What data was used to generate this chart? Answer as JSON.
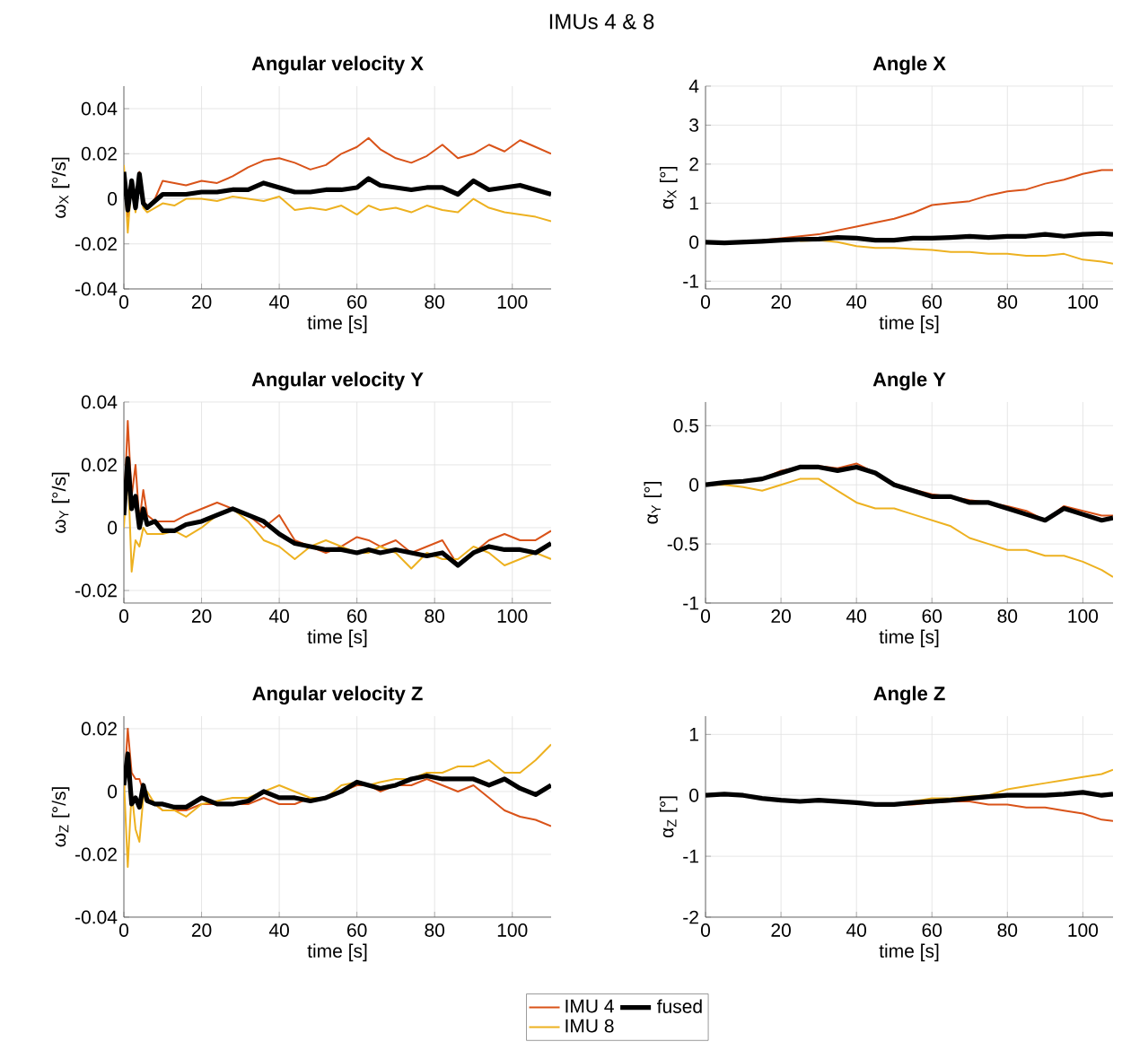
{
  "chart_data": [
    {
      "type": "line",
      "title": "Angular velocity X",
      "annotations": [
        "IMUs 4 & 8"
      ],
      "xlabel": "time [s]",
      "ylabel": "ω$_{X}$ [°/s]",
      "xlim": [
        0,
        110
      ],
      "ylim": [
        -0.04,
        0.05
      ],
      "xticks": [
        0,
        20,
        40,
        60,
        80,
        100
      ],
      "yticks": [
        -0.04,
        -0.02,
        0,
        0.02,
        0.04
      ],
      "grid": true,
      "x": [
        0,
        1,
        2,
        3,
        4,
        5,
        6,
        8,
        10,
        13,
        16,
        20,
        24,
        28,
        32,
        36,
        40,
        44,
        48,
        52,
        56,
        60,
        63,
        66,
        70,
        74,
        78,
        82,
        86,
        90,
        94,
        98,
        102,
        106,
        110
      ],
      "series": [
        {
          "color": "#d95319",
          "values": [
            0.01,
            -0.008,
            0.005,
            -0.005,
            0.012,
            0,
            -0.004,
            0,
            0.008,
            0.007,
            0.006,
            0.008,
            0.007,
            0.01,
            0.014,
            0.017,
            0.018,
            0.016,
            0.013,
            0.015,
            0.02,
            0.023,
            0.027,
            0.022,
            0.018,
            0.016,
            0.019,
            0.024,
            0.018,
            0.02,
            0.024,
            0.021,
            0.026,
            0.023,
            0.02
          ]
        },
        {
          "color": "#edb120",
          "values": [
            0.015,
            -0.015,
            0.008,
            -0.006,
            0.01,
            -0.004,
            -0.006,
            -0.004,
            -0.002,
            -0.003,
            0,
            0,
            -0.001,
            0.001,
            0,
            -0.001,
            0.001,
            -0.005,
            -0.004,
            -0.005,
            -0.003,
            -0.007,
            -0.003,
            -0.005,
            -0.004,
            -0.006,
            -0.003,
            -0.005,
            -0.006,
            0,
            -0.004,
            -0.006,
            -0.007,
            -0.008,
            -0.01
          ]
        },
        {
          "color": "#000000",
          "values": [
            0.012,
            -0.005,
            0.008,
            -0.004,
            0.011,
            -0.002,
            -0.004,
            -0.001,
            0.002,
            0.002,
            0.002,
            0.003,
            0.003,
            0.004,
            0.004,
            0.007,
            0.005,
            0.003,
            0.003,
            0.004,
            0.004,
            0.005,
            0.009,
            0.006,
            0.005,
            0.004,
            0.005,
            0.005,
            0.002,
            0.008,
            0.004,
            0.005,
            0.006,
            0.004,
            0.002
          ]
        }
      ]
    },
    {
      "type": "line",
      "title": "Angle X",
      "xlabel": "time [s]",
      "ylabel": "α$_{X}$ [°]",
      "xlim": [
        0,
        108
      ],
      "ylim": [
        -1.2,
        4
      ],
      "xticks": [
        0,
        20,
        40,
        60,
        80,
        100
      ],
      "yticks": [
        -1,
        0,
        1,
        2,
        3,
        4
      ],
      "grid": true,
      "x": [
        0,
        5,
        10,
        15,
        20,
        25,
        30,
        35,
        40,
        45,
        50,
        55,
        60,
        65,
        70,
        75,
        80,
        85,
        90,
        95,
        100,
        105,
        108
      ],
      "series": [
        {
          "color": "#d95319",
          "values": [
            null,
            null,
            null,
            0.05,
            0.1,
            0.15,
            0.2,
            0.3,
            0.4,
            0.5,
            0.6,
            0.75,
            0.95,
            1.0,
            1.05,
            1.2,
            1.3,
            1.35,
            1.5,
            1.6,
            1.75,
            1.85,
            1.85
          ]
        },
        {
          "color": "#edb120",
          "values": [
            null,
            null,
            null,
            null,
            null,
            0.03,
            0.05,
            0.0,
            -0.1,
            -0.15,
            -0.15,
            -0.18,
            -0.2,
            -0.25,
            -0.25,
            -0.3,
            -0.3,
            -0.35,
            -0.35,
            -0.3,
            -0.45,
            -0.5,
            -0.55
          ]
        },
        {
          "color": "#000000",
          "values": [
            0,
            -0.02,
            0,
            0.02,
            0.05,
            0.07,
            0.08,
            0.12,
            0.1,
            0.05,
            0.05,
            0.1,
            0.1,
            0.12,
            0.15,
            0.12,
            0.15,
            0.15,
            0.2,
            0.15,
            0.2,
            0.22,
            0.2
          ]
        }
      ]
    },
    {
      "type": "line",
      "title": "Angular velocity Y",
      "xlabel": "time [s]",
      "ylabel": "ω$_{Y}$ [°/s]",
      "xlim": [
        0,
        110
      ],
      "ylim": [
        -0.024,
        0.04
      ],
      "xticks": [
        0,
        20,
        40,
        60,
        80,
        100
      ],
      "yticks": [
        -0.02,
        0,
        0.02,
        0.04
      ],
      "grid": true,
      "x": [
        0,
        1,
        2,
        3,
        4,
        5,
        6,
        8,
        10,
        13,
        16,
        20,
        24,
        28,
        32,
        36,
        40,
        44,
        48,
        52,
        56,
        60,
        63,
        66,
        70,
        74,
        78,
        82,
        86,
        90,
        94,
        98,
        102,
        106,
        110
      ],
      "series": [
        {
          "color": "#d95319",
          "values": [
            0.005,
            0.034,
            0.01,
            0.02,
            0.002,
            0.012,
            0.004,
            0.002,
            0.002,
            0.002,
            0.004,
            0.006,
            0.008,
            0.006,
            0.004,
            0,
            0.004,
            -0.004,
            -0.006,
            -0.008,
            -0.006,
            -0.003,
            -0.004,
            -0.006,
            -0.004,
            -0.008,
            -0.006,
            -0.004,
            -0.012,
            -0.008,
            -0.004,
            -0.002,
            -0.004,
            -0.004,
            -0.001
          ]
        },
        {
          "color": "#edb120",
          "values": [
            0,
            0.02,
            -0.014,
            -0.004,
            -0.006,
            0,
            -0.002,
            -0.002,
            -0.002,
            -0.001,
            -0.003,
            0,
            0.004,
            0.006,
            0.002,
            -0.004,
            -0.006,
            -0.01,
            -0.006,
            -0.004,
            -0.006,
            -0.008,
            -0.008,
            -0.006,
            -0.008,
            -0.013,
            -0.008,
            -0.01,
            -0.01,
            -0.006,
            -0.008,
            -0.012,
            -0.01,
            -0.008,
            -0.01
          ]
        },
        {
          "color": "#000000",
          "values": [
            0.004,
            0.022,
            0.006,
            0.01,
            0,
            0.006,
            0.001,
            0.002,
            -0.001,
            -0.001,
            0.001,
            0.002,
            0.004,
            0.006,
            0.004,
            0.002,
            -0.002,
            -0.005,
            -0.006,
            -0.007,
            -0.007,
            -0.008,
            -0.007,
            -0.008,
            -0.007,
            -0.008,
            -0.009,
            -0.008,
            -0.012,
            -0.008,
            -0.006,
            -0.007,
            -0.007,
            -0.008,
            -0.005
          ]
        }
      ]
    },
    {
      "type": "line",
      "title": "Angle Y",
      "xlabel": "time [s]",
      "ylabel": "α$_{Y}$ [°]",
      "xlim": [
        0,
        108
      ],
      "ylim": [
        -1,
        0.7
      ],
      "xticks": [
        0,
        20,
        40,
        60,
        80,
        100
      ],
      "yticks": [
        -1,
        -0.5,
        0,
        0.5
      ],
      "grid": true,
      "x": [
        0,
        5,
        10,
        15,
        20,
        25,
        30,
        35,
        40,
        45,
        50,
        55,
        60,
        65,
        70,
        75,
        80,
        85,
        90,
        95,
        100,
        105,
        108
      ],
      "series": [
        {
          "color": "#d95319",
          "values": [
            null,
            null,
            null,
            0.05,
            0.12,
            0.15,
            0.16,
            0.14,
            0.18,
            0.1,
            0.01,
            -0.04,
            -0.08,
            -0.1,
            -0.13,
            -0.15,
            -0.18,
            -0.22,
            -0.3,
            -0.18,
            -0.22,
            -0.26,
            -0.26
          ]
        },
        {
          "color": "#edb120",
          "values": [
            0,
            0,
            -0.02,
            -0.05,
            0,
            0.05,
            0.05,
            -0.05,
            -0.15,
            -0.2,
            -0.2,
            -0.25,
            -0.3,
            -0.35,
            -0.45,
            -0.5,
            -0.55,
            -0.55,
            -0.6,
            -0.6,
            -0.65,
            -0.72,
            -0.78
          ]
        },
        {
          "color": "#000000",
          "values": [
            0,
            0.02,
            0.03,
            0.05,
            0.1,
            0.15,
            0.15,
            0.12,
            0.15,
            0.1,
            0,
            -0.05,
            -0.1,
            -0.1,
            -0.15,
            -0.15,
            -0.2,
            -0.25,
            -0.3,
            -0.2,
            -0.25,
            -0.3,
            -0.28
          ]
        }
      ]
    },
    {
      "type": "line",
      "title": "Angular velocity Z",
      "xlabel": "time [s]",
      "ylabel": "ω$_{Z}$ [°/s]",
      "xlim": [
        0,
        110
      ],
      "ylim": [
        -0.04,
        0.024
      ],
      "xticks": [
        0,
        20,
        40,
        60,
        80,
        100
      ],
      "yticks": [
        -0.04,
        -0.02,
        0,
        0.02
      ],
      "grid": true,
      "legend": "bottom",
      "x": [
        0,
        1,
        2,
        3,
        4,
        5,
        6,
        8,
        10,
        13,
        16,
        20,
        24,
        28,
        32,
        36,
        40,
        44,
        48,
        52,
        56,
        60,
        63,
        66,
        70,
        74,
        78,
        82,
        86,
        90,
        94,
        98,
        102,
        106,
        110
      ],
      "series": [
        {
          "name": "IMU 4",
          "color": "#d95319",
          "values": [
            0,
            0.02,
            0.006,
            0.004,
            0.004,
            0,
            -0.002,
            -0.004,
            -0.006,
            -0.006,
            -0.006,
            -0.004,
            -0.004,
            -0.004,
            -0.004,
            -0.002,
            -0.004,
            -0.004,
            -0.002,
            -0.002,
            0,
            0.002,
            0.002,
            0,
            0.002,
            0.002,
            0.004,
            0.002,
            0,
            0.002,
            -0.002,
            -0.006,
            -0.008,
            -0.009,
            -0.011
          ]
        },
        {
          "name": "IMU 8",
          "color": "#edb120",
          "values": [
            0.004,
            -0.024,
            0,
            -0.012,
            -0.016,
            -0.002,
            0,
            -0.004,
            -0.006,
            -0.006,
            -0.008,
            -0.004,
            -0.003,
            -0.002,
            -0.002,
            0,
            0.002,
            0,
            -0.002,
            -0.002,
            0.002,
            0.003,
            0.002,
            0.003,
            0.004,
            0.004,
            0.006,
            0.006,
            0.008,
            0.008,
            0.01,
            0.006,
            0.006,
            0.01,
            0.015
          ]
        },
        {
          "name": "fused",
          "color": "#000000",
          "values": [
            0.002,
            0.012,
            -0.004,
            -0.002,
            -0.005,
            0.002,
            -0.003,
            -0.004,
            -0.004,
            -0.005,
            -0.005,
            -0.002,
            -0.004,
            -0.004,
            -0.003,
            0,
            -0.002,
            -0.002,
            -0.003,
            -0.002,
            0,
            0.003,
            0.002,
            0.001,
            0.002,
            0.004,
            0.005,
            0.004,
            0.004,
            0.004,
            0.002,
            0.004,
            0.001,
            -0.001,
            0.002
          ]
        }
      ]
    },
    {
      "type": "line",
      "title": "Angle Z",
      "xlabel": "time [s]",
      "ylabel": "α$_{Z}$ [°]",
      "xlim": [
        0,
        108
      ],
      "ylim": [
        -2,
        1.3
      ],
      "xticks": [
        0,
        20,
        40,
        60,
        80,
        100
      ],
      "yticks": [
        -2,
        -1,
        0,
        1
      ],
      "grid": true,
      "x": [
        0,
        5,
        10,
        15,
        20,
        25,
        30,
        35,
        40,
        45,
        50,
        55,
        60,
        65,
        70,
        75,
        80,
        85,
        90,
        95,
        100,
        105,
        108
      ],
      "series": [
        {
          "color": "#d95319",
          "values": [
            null,
            null,
            null,
            null,
            null,
            null,
            null,
            null,
            null,
            null,
            -0.15,
            -0.15,
            -0.12,
            -0.1,
            -0.1,
            -0.15,
            -0.15,
            -0.2,
            -0.2,
            -0.25,
            -0.3,
            -0.4,
            -0.42
          ]
        },
        {
          "color": "#edb120",
          "values": [
            null,
            null,
            null,
            null,
            null,
            null,
            null,
            null,
            null,
            null,
            -0.15,
            -0.1,
            -0.05,
            -0.05,
            -0.02,
            0,
            0.1,
            0.15,
            0.2,
            0.25,
            0.3,
            0.35,
            0.42
          ]
        },
        {
          "color": "#000000",
          "values": [
            0,
            0.02,
            0,
            -0.05,
            -0.08,
            -0.1,
            -0.08,
            -0.1,
            -0.12,
            -0.15,
            -0.15,
            -0.12,
            -0.1,
            -0.08,
            -0.05,
            -0.02,
            0,
            0,
            0,
            0.02,
            0.05,
            0,
            0.02
          ]
        }
      ]
    }
  ]
}
